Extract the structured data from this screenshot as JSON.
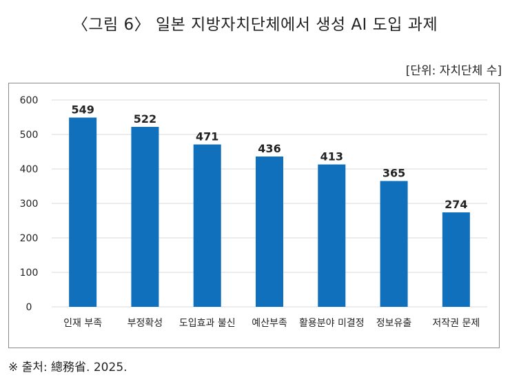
{
  "header": {
    "title": "〈그림 6〉 일본 지방자치단체에서 생성 AI 도입 과제",
    "unit": "[단위: 자치단체 수]"
  },
  "footer": {
    "source": "※ 출처: 總務省. 2025."
  },
  "colors": {
    "bar": "#1070BC",
    "grid": "#d9d9d9"
  },
  "chart_data": {
    "type": "bar",
    "categories": [
      "인재 부족",
      "부정확성",
      "도입효과 불신",
      "예산부족",
      "활용분야 미결정",
      "정보유출",
      "저작권 문제"
    ],
    "values": [
      549,
      522,
      471,
      436,
      413,
      365,
      274
    ],
    "ylim": [
      0,
      600
    ],
    "yticks": [
      0,
      100,
      200,
      300,
      400,
      500,
      600
    ],
    "grid": true
  }
}
